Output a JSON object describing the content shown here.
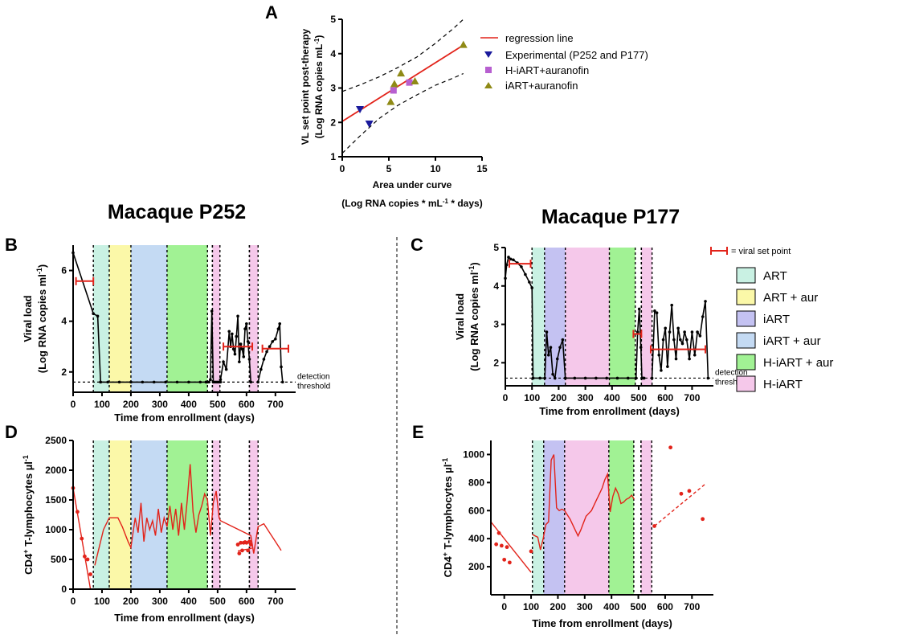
{
  "panel_letters": {
    "A": "A",
    "B": "B",
    "C": "C",
    "D": "D",
    "E": "E"
  },
  "macaque_titles": {
    "p252": "Macaque P252",
    "p177": "Macaque P177"
  },
  "set_point_key": "= viral set point",
  "detection_label": {
    "line1": "detection",
    "line2": "threshold"
  },
  "therapy_legend": [
    {
      "label": "ART",
      "color": "#c9f1e3"
    },
    {
      "label": "ART + aur",
      "color": "#fbf8a8"
    },
    {
      "label": "iART",
      "color": "#c4c2f2"
    },
    {
      "label": "iART + aur",
      "color": "#c4daf3"
    },
    {
      "label": "H-iART + aur",
      "color": "#a1f294"
    },
    {
      "label": "H-iART",
      "color": "#f5c8ea"
    }
  ],
  "colors": {
    "red": "#e2231a",
    "black": "#000000",
    "navy": "#1a1a9c",
    "purple": "#b75fd0",
    "olive": "#8f8a16"
  },
  "chart_data": [
    {
      "id": "A",
      "type": "scatter",
      "title": "",
      "xlabel": "Area under curve",
      "xlabel2": "(Log RNA copies * mL-1 * days)",
      "ylabel": "VL set point post-therapy",
      "ylabel2": "(Log RNA copies mL-1)",
      "xlim": [
        0,
        15
      ],
      "ylim": [
        1,
        5
      ],
      "xticks": [
        0,
        5,
        10,
        15
      ],
      "yticks": [
        1,
        2,
        3,
        4,
        5
      ],
      "legend_position": "right",
      "regression": {
        "name": "regression line",
        "x": [
          0,
          13
        ],
        "y": [
          2.03,
          4.25
        ]
      },
      "confidence_band": {
        "upper": {
          "x": [
            0,
            2,
            4,
            6,
            8,
            10,
            12,
            13
          ],
          "y": [
            2.9,
            3.1,
            3.33,
            3.6,
            3.9,
            4.3,
            4.75,
            5.0
          ]
        },
        "lower": {
          "x": [
            0,
            2,
            4,
            6,
            8,
            10,
            12,
            13
          ],
          "y": [
            1.1,
            1.63,
            2.12,
            2.5,
            2.8,
            3.08,
            3.3,
            3.42
          ]
        }
      },
      "series": [
        {
          "name": "Experimental (P252 and P177)",
          "marker": "triangle-down",
          "color": "#1a1a9c",
          "x": [
            1.9,
            2.9
          ],
          "y": [
            2.38,
            1.96
          ]
        },
        {
          "name": "H-iART+auranofin",
          "marker": "square",
          "color": "#b75fd0",
          "x": [
            5.5,
            7.2
          ],
          "y": [
            2.93,
            3.16
          ]
        },
        {
          "name": "iART+auranofin",
          "marker": "triangle-up",
          "color": "#8f8a16",
          "x": [
            5.2,
            5.6,
            6.3,
            7.8,
            13
          ],
          "y": [
            2.6,
            3.12,
            3.43,
            3.2,
            4.26
          ]
        }
      ]
    },
    {
      "id": "B",
      "type": "line",
      "xlabel": "Time from enrollment (days)",
      "ylabel": "Viral load",
      "ylabel2": "(Log RNA copies ml-1)",
      "xlim": [
        0,
        770
      ],
      "ylim": [
        1.2,
        7
      ],
      "xticks": [
        0,
        100,
        200,
        300,
        400,
        500,
        600,
        700
      ],
      "yticks": [
        2,
        4,
        6
      ],
      "detection_threshold": 1.6,
      "therapy_periods": [
        {
          "therapy": "ART",
          "start": 70,
          "end": 125
        },
        {
          "therapy": "ART + aur",
          "start": 125,
          "end": 200
        },
        {
          "therapy": "iART + aur",
          "start": 200,
          "end": 325
        },
        {
          "therapy": "H-iART + aur",
          "start": 325,
          "end": 465
        },
        {
          "therapy": "H-iART",
          "start": 482,
          "end": 508
        },
        {
          "therapy": "H-iART",
          "start": 610,
          "end": 640
        }
      ],
      "extra_vlines": [
        465,
        482,
        508,
        610,
        640
      ],
      "segments": [
        {
          "x": [
            0,
            70,
            85,
            95
          ],
          "y": [
            6.7,
            4.3,
            4.2,
            1.6
          ]
        },
        {
          "x": [
            95,
            120,
            160,
            200,
            240,
            280,
            320,
            360,
            400,
            440,
            460
          ],
          "y": [
            1.6,
            1.6,
            1.6,
            1.6,
            1.6,
            1.6,
            1.6,
            1.6,
            1.6,
            1.6,
            1.6
          ]
        },
        {
          "x": [
            460,
            465,
            470,
            475,
            480,
            485,
            490,
            495,
            500,
            505,
            510
          ],
          "y": [
            1.6,
            1.6,
            1.6,
            1.7,
            4.4,
            1.6,
            1.6,
            1.6,
            1.6,
            1.6,
            1.6
          ]
        },
        {
          "x": [
            510,
            520,
            530,
            540,
            545,
            550,
            555,
            560,
            565,
            570,
            575,
            580,
            585,
            590,
            595,
            600,
            605,
            610,
            615
          ],
          "y": [
            1.7,
            2.4,
            2.1,
            3.6,
            3.0,
            3.5,
            2.9,
            2.7,
            3.4,
            4.2,
            2.4,
            3.1,
            2.9,
            2.6,
            3.7,
            3.9,
            3.2,
            2.5,
            1.6
          ]
        },
        {
          "x": [
            640,
            650,
            660,
            670,
            680,
            690,
            700,
            710,
            715,
            720,
            725
          ],
          "y": [
            1.6,
            2.1,
            2.5,
            2.8,
            3.0,
            3.2,
            3.3,
            3.7,
            3.9,
            2.2,
            1.6
          ]
        }
      ],
      "set_points": [
        {
          "x1": 10,
          "x2": 70,
          "y": 5.58
        },
        {
          "x1": 520,
          "x2": 620,
          "y": 3.0
        },
        {
          "x1": 655,
          "x2": 745,
          "y": 2.92
        }
      ]
    },
    {
      "id": "C",
      "type": "line",
      "xlabel": "Time from enrollment (days)",
      "ylabel": "Viral load",
      "ylabel2": "(Log RNA copies ml-1)",
      "xlim": [
        0,
        780
      ],
      "ylim": [
        1.4,
        5
      ],
      "xticks": [
        0,
        100,
        200,
        300,
        400,
        500,
        600,
        700
      ],
      "yticks": [
        2,
        3,
        4,
        5
      ],
      "detection_threshold": 1.6,
      "therapy_periods": [
        {
          "therapy": "ART",
          "start": 100,
          "end": 147
        },
        {
          "therapy": "iART",
          "start": 147,
          "end": 225
        },
        {
          "therapy": "H-iART",
          "start": 225,
          "end": 390
        },
        {
          "therapy": "H-iART + aur",
          "start": 390,
          "end": 487
        },
        {
          "therapy": "H-iART",
          "start": 510,
          "end": 550
        }
      ],
      "extra_vlines": [
        487,
        510,
        550
      ],
      "segments": [
        {
          "x": [
            0,
            5,
            12,
            20,
            30,
            45,
            60,
            75,
            90,
            100,
            104
          ],
          "y": [
            4.2,
            4.55,
            4.75,
            4.7,
            4.68,
            4.6,
            4.5,
            4.3,
            4.1,
            3.95,
            1.6
          ]
        },
        {
          "x": [
            104,
            130,
            148,
            155,
            162,
            170,
            178,
            186,
            195,
            205,
            215,
            225
          ],
          "y": [
            1.6,
            1.6,
            1.6,
            2.8,
            2.2,
            2.4,
            1.7,
            1.6,
            2.1,
            2.4,
            2.6,
            1.6
          ]
        },
        {
          "x": [
            225,
            260,
            300,
            340,
            380,
            420,
            460,
            490
          ],
          "y": [
            1.6,
            1.6,
            1.6,
            1.6,
            1.6,
            1.6,
            1.6,
            1.6
          ]
        },
        {
          "x": [
            490,
            496,
            502,
            508,
            512,
            516,
            520
          ],
          "y": [
            1.6,
            2.8,
            3.4,
            2.4,
            1.6,
            1.6,
            1.6
          ]
        },
        {
          "x": [
            550,
            560,
            568,
            576,
            584,
            592,
            600,
            608,
            616,
            624,
            632,
            640,
            648,
            656,
            664,
            672,
            680,
            690,
            700,
            710,
            720,
            730,
            740,
            750,
            760
          ],
          "y": [
            1.6,
            3.35,
            3.3,
            2.2,
            1.8,
            2.6,
            2.9,
            1.9,
            2.8,
            3.5,
            2.6,
            2.1,
            2.9,
            2.6,
            2.5,
            2.8,
            2.6,
            2.1,
            2.8,
            2.2,
            2.8,
            2.7,
            3.2,
            3.6,
            1.6
          ]
        }
      ],
      "set_points": [
        {
          "x1": 15,
          "x2": 95,
          "y": 4.58
        },
        {
          "x1": 480,
          "x2": 510,
          "y": 2.75
        },
        {
          "x1": 545,
          "x2": 750,
          "y": 2.35
        }
      ]
    },
    {
      "id": "D",
      "type": "line",
      "xlabel": "Time from enrollment (days)",
      "ylabel": "CD4+ T-lymphocytes µl-1",
      "xlim": [
        0,
        770
      ],
      "ylim": [
        0,
        2500
      ],
      "xticks": [
        0,
        100,
        200,
        300,
        400,
        500,
        600,
        700
      ],
      "yticks": [
        0,
        500,
        1000,
        1500,
        2000,
        2500
      ],
      "therapy_periods": [
        {
          "therapy": "ART",
          "start": 70,
          "end": 125
        },
        {
          "therapy": "ART + aur",
          "start": 125,
          "end": 200
        },
        {
          "therapy": "iART + aur",
          "start": 200,
          "end": 325
        },
        {
          "therapy": "H-iART + aur",
          "start": 325,
          "end": 465
        },
        {
          "therapy": "H-iART",
          "start": 482,
          "end": 508
        },
        {
          "therapy": "H-iART",
          "start": 610,
          "end": 640
        }
      ],
      "extra_vlines": [
        465,
        482,
        508,
        610,
        640
      ],
      "line_x": [
        75,
        90,
        105,
        125,
        140,
        155,
        170,
        190,
        200,
        215,
        225,
        235,
        245,
        255,
        265,
        275,
        285,
        295,
        305,
        315,
        325,
        335,
        345,
        355,
        365,
        375,
        385,
        395,
        405,
        415,
        425,
        435,
        445,
        455,
        465,
        475,
        485,
        495,
        505,
        510,
        615,
        625,
        640,
        660,
        680,
        700,
        720
      ],
      "line_y": [
        400,
        700,
        1000,
        1200,
        1200,
        1200,
        1050,
        800,
        700,
        1200,
        950,
        1450,
        800,
        1200,
        1000,
        1150,
        900,
        1350,
        950,
        1200,
        1050,
        1400,
        1000,
        1350,
        900,
        1450,
        1000,
        1500,
        2100,
        1300,
        950,
        1250,
        1400,
        1600,
        1500,
        900,
        1450,
        1650,
        1200,
        1150,
        900,
        600,
        1050,
        1100,
        950,
        800,
        650
      ],
      "decline_line": {
        "x": [
          0,
          60
        ],
        "y": [
          1700,
          0
        ]
      },
      "scatter_x": [
        0,
        15,
        30,
        40,
        50,
        60,
        570,
        575,
        580,
        585,
        590,
        595,
        600,
        605,
        610,
        615
      ],
      "scatter_y": [
        1700,
        1300,
        850,
        550,
        500,
        250,
        750,
        600,
        780,
        650,
        780,
        790,
        780,
        650,
        800,
        750
      ],
      "dashed_fit": {
        "x": [
          570,
          630
        ],
        "y": [
          640,
          700
        ]
      }
    },
    {
      "id": "E",
      "type": "line",
      "xlabel": "Time from enrollment (days)",
      "ylabel": "CD4+ T-lymphocytes µl-1",
      "xlim": [
        -50,
        780
      ],
      "ylim": [
        0,
        1100
      ],
      "xticks": [
        0,
        100,
        200,
        300,
        400,
        500,
        600,
        700
      ],
      "yticks": [
        200,
        400,
        600,
        800,
        1000
      ],
      "therapy_periods": [
        {
          "therapy": "ART",
          "start": 105,
          "end": 147
        },
        {
          "therapy": "iART",
          "start": 147,
          "end": 225
        },
        {
          "therapy": "H-iART",
          "start": 225,
          "end": 390
        },
        {
          "therapy": "H-iART + aur",
          "start": 390,
          "end": 483
        },
        {
          "therapy": "H-iART",
          "start": 510,
          "end": 550
        }
      ],
      "extra_vlines": [
        483,
        510,
        550
      ],
      "line_x": [
        105,
        115,
        125,
        135,
        145,
        155,
        165,
        175,
        185,
        195,
        205,
        215,
        225,
        235,
        245,
        255,
        265,
        275,
        285,
        295,
        305,
        315,
        325,
        335,
        345,
        355,
        365,
        375,
        385,
        395,
        405,
        415,
        425,
        435,
        445,
        455,
        465,
        475,
        485
      ],
      "line_y": [
        430,
        420,
        410,
        320,
        400,
        500,
        520,
        960,
        1000,
        620,
        600,
        610,
        600,
        570,
        540,
        500,
        460,
        420,
        460,
        510,
        560,
        580,
        600,
        640,
        680,
        720,
        760,
        820,
        860,
        590,
        700,
        760,
        720,
        650,
        660,
        680,
        690,
        710,
        680
      ],
      "decline_line": {
        "x": [
          -50,
          100
        ],
        "y": [
          520,
          160
        ]
      },
      "scatter_x": [
        -30,
        -20,
        -10,
        0,
        10,
        20,
        100,
        560,
        620,
        660,
        690,
        740
      ],
      "scatter_y": [
        360,
        440,
        350,
        250,
        340,
        230,
        310,
        490,
        1050,
        720,
        740,
        540
      ],
      "dashed_fit": {
        "x": [
          560,
          750
        ],
        "y": [
          490,
          790
        ]
      }
    }
  ]
}
